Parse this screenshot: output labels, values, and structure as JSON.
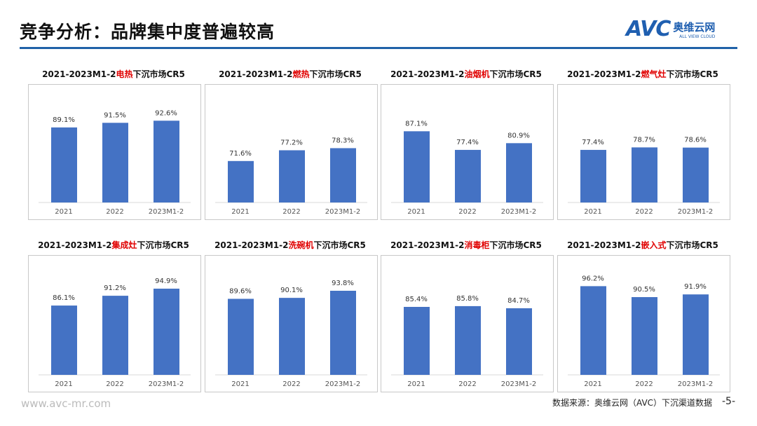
{
  "header": {
    "title": "竞争分析：品牌集中度普遍较高",
    "logo": {
      "mark": "AVC",
      "cn": "奥维云网",
      "en": "ALL VIEW CLOUD"
    }
  },
  "footer": {
    "url": "www.avc-mr.com",
    "source": "数据来源：奥维云网（AVC）下沉渠道数据",
    "page": "-5-"
  },
  "colors": {
    "bar": "#4472c4",
    "highlight": "#e00000",
    "rule": "#2062a8"
  },
  "chart_data": [
    {
      "type": "bar",
      "title_prefix": "2021-2023M1-2",
      "title_highlight": "电热",
      "title_suffix": "下沉市场CR5",
      "categories": [
        "2021",
        "2022",
        "2023M1-2"
      ],
      "values": [
        89.1,
        91.5,
        92.6
      ],
      "labels": [
        "89.1%",
        "91.5%",
        "92.6%"
      ],
      "ylim": [
        50,
        100
      ]
    },
    {
      "type": "bar",
      "title_prefix": "2021-2023M1-2",
      "title_highlight": "燃热",
      "title_suffix": "下沉市场CR5",
      "categories": [
        "2021",
        "2022",
        "2023M1-2"
      ],
      "values": [
        71.6,
        77.2,
        78.3
      ],
      "labels": [
        "71.6%",
        "77.2%",
        "78.3%"
      ],
      "ylim": [
        50,
        100
      ]
    },
    {
      "type": "bar",
      "title_prefix": "2021-2023M1-2",
      "title_highlight": "油烟机",
      "title_suffix": "下沉市场CR5",
      "categories": [
        "2021",
        "2022",
        "2023M1-2"
      ],
      "values": [
        87.1,
        77.4,
        80.9
      ],
      "labels": [
        "87.1%",
        "77.4%",
        "80.9%"
      ],
      "ylim": [
        50,
        100
      ]
    },
    {
      "type": "bar",
      "title_prefix": "2021-2023M1-2",
      "title_highlight": "燃气灶",
      "title_suffix": "下沉市场CR5",
      "categories": [
        "2021",
        "2022",
        "2023M1-2"
      ],
      "values": [
        77.4,
        78.7,
        78.6
      ],
      "labels": [
        "77.4%",
        "78.7%",
        "78.6%"
      ],
      "ylim": [
        50,
        100
      ]
    },
    {
      "type": "bar",
      "title_prefix": "2021-2023M1-2",
      "title_highlight": "集成灶",
      "title_suffix": "下沉市场CR5",
      "categories": [
        "2021",
        "2022",
        "2023M1-2"
      ],
      "values": [
        86.1,
        91.2,
        94.9
      ],
      "labels": [
        "86.1%",
        "91.2%",
        "94.9%"
      ],
      "ylim": [
        50,
        100
      ]
    },
    {
      "type": "bar",
      "title_prefix": "2021-2023M1-2",
      "title_highlight": "洗碗机",
      "title_suffix": "下沉市场CR5",
      "categories": [
        "2021",
        "2022",
        "2023M1-2"
      ],
      "values": [
        89.6,
        90.1,
        93.8
      ],
      "labels": [
        "89.6%",
        "90.1%",
        "93.8%"
      ],
      "ylim": [
        50,
        100
      ]
    },
    {
      "type": "bar",
      "title_prefix": "2021-2023M1-2",
      "title_highlight": "消毒柜",
      "title_suffix": "下沉市场CR5",
      "categories": [
        "2021",
        "2022",
        "2023M1-2"
      ],
      "values": [
        85.4,
        85.8,
        84.7
      ],
      "labels": [
        "85.4%",
        "85.8%",
        "84.7%"
      ],
      "ylim": [
        50,
        100
      ]
    },
    {
      "type": "bar",
      "title_prefix": "2021-2023M1-2",
      "title_highlight": "嵌入式",
      "title_suffix": "下沉市场CR5",
      "categories": [
        "2021",
        "2022",
        "2023M1-2"
      ],
      "values": [
        96.2,
        90.5,
        91.9
      ],
      "labels": [
        "96.2%",
        "90.5%",
        "91.9%"
      ],
      "ylim": [
        50,
        100
      ]
    }
  ]
}
